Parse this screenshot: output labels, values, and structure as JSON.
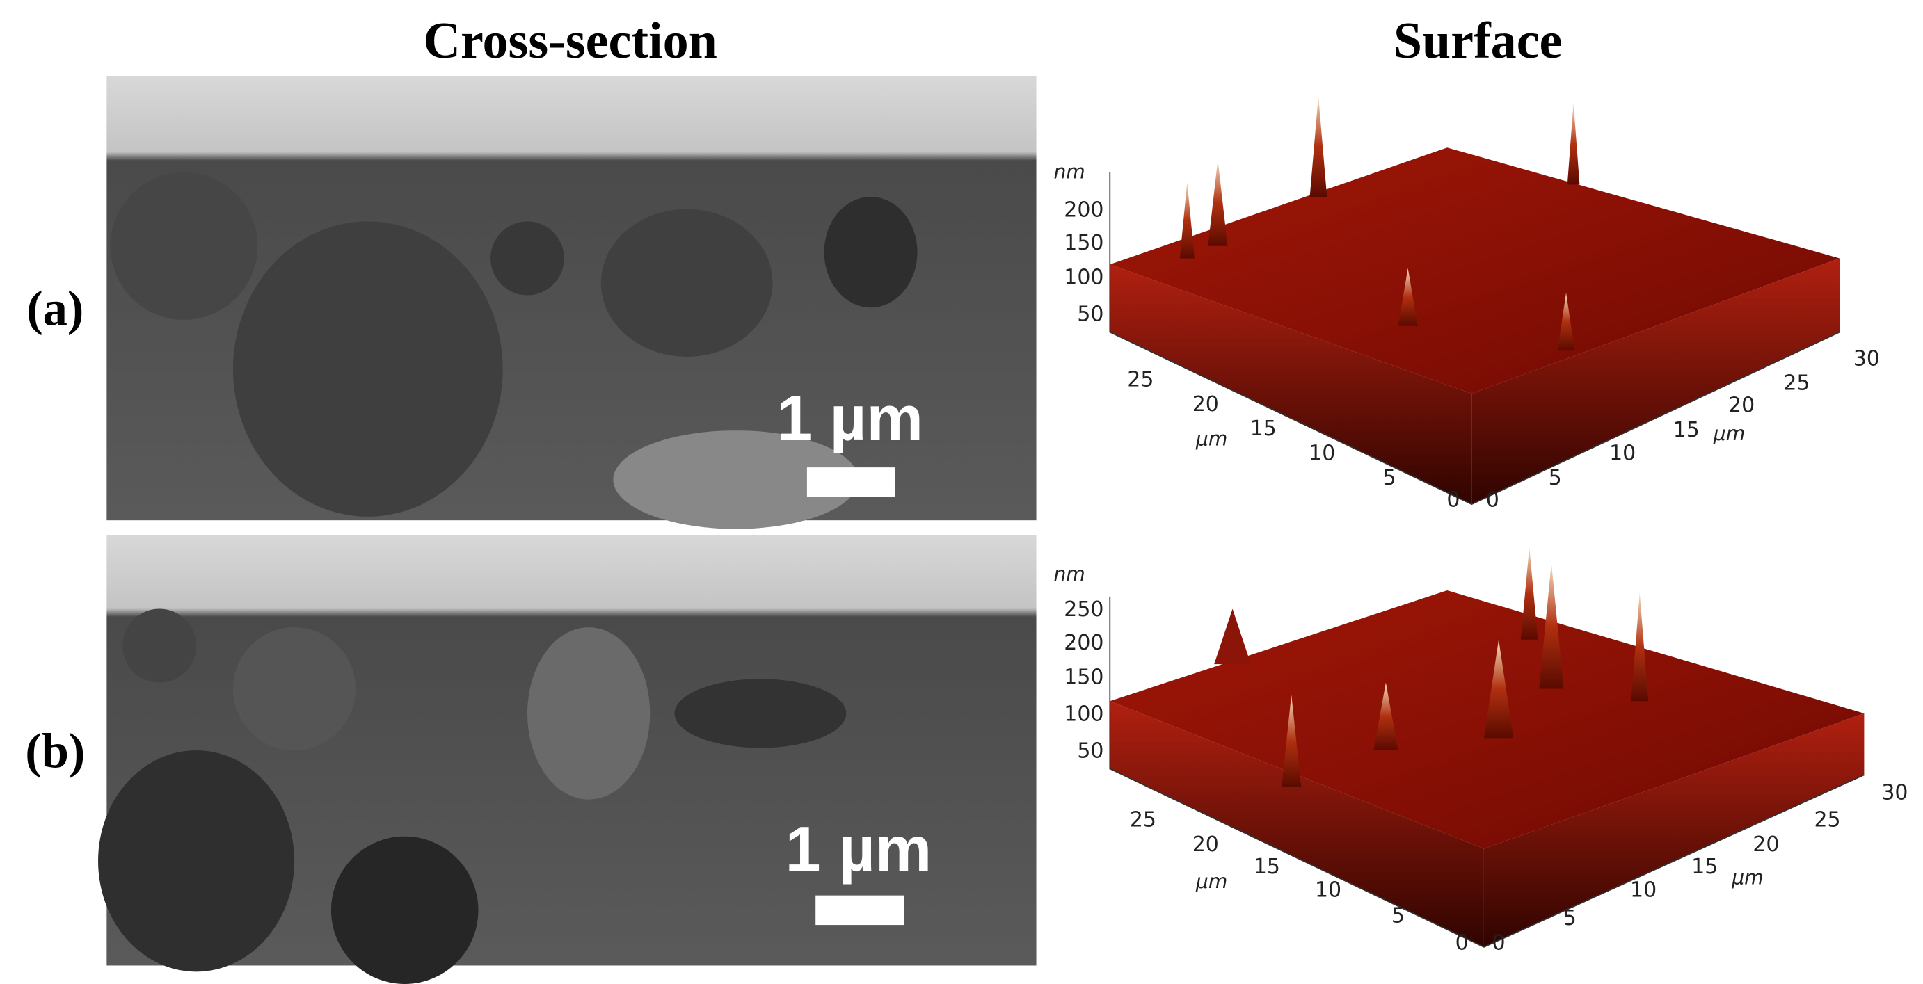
{
  "column_titles": [
    "Cross-section",
    "Surface"
  ],
  "rows": [
    {
      "label": "(a)",
      "scale_bar": "1 µm",
      "afm": {
        "z_unit": "nm",
        "z_ticks": [
          "200",
          "150",
          "100",
          "50"
        ],
        "x_ticks": [
          "25",
          "20",
          "15",
          "10",
          "5",
          "0"
        ],
        "x_unit": "µm",
        "y_ticks": [
          "0",
          "5",
          "10",
          "15",
          "20",
          "25",
          "30"
        ],
        "y_unit": "µm"
      }
    },
    {
      "label": "(b)",
      "scale_bar": "1 µm",
      "afm": {
        "z_unit": "nm",
        "z_ticks": [
          "250",
          "200",
          "150",
          "100",
          "50"
        ],
        "x_ticks": [
          "25",
          "20",
          "15",
          "10",
          "5",
          "0"
        ],
        "x_unit": "µm",
        "y_ticks": [
          "0",
          "5",
          "10",
          "15",
          "20",
          "25",
          "30"
        ],
        "y_unit": "µm"
      }
    }
  ]
}
